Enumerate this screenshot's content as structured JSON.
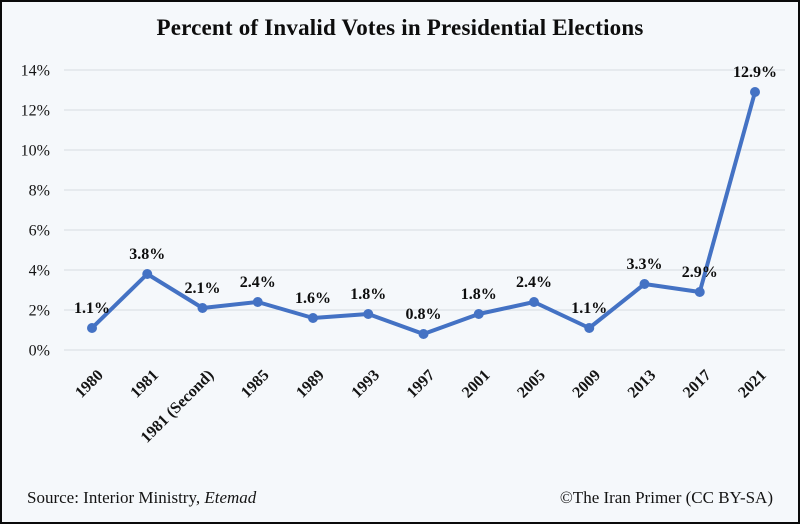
{
  "title": "Percent of Invalid Votes in Presidential Elections",
  "footer": {
    "source_prefix": "Source: Interior Ministry, ",
    "source_publication": "Etemad",
    "credit": "©The Iran Primer (CC BY-SA)"
  },
  "chart_data": {
    "type": "line",
    "title": "Percent of Invalid Votes in Presidential Elections",
    "categories": [
      "1980",
      "1981",
      "1981 (Second)",
      "1985",
      "1989",
      "1993",
      "1997",
      "2001",
      "2005",
      "2009",
      "2013",
      "2017",
      "2021"
    ],
    "values": [
      1.1,
      3.8,
      2.1,
      2.4,
      1.6,
      1.8,
      0.8,
      1.8,
      2.4,
      1.1,
      3.3,
      2.9,
      12.9
    ],
    "point_labels": [
      "1.1%",
      "3.8%",
      "2.1%",
      "2.4%",
      "1.6%",
      "1.8%",
      "0.8%",
      "1.8%",
      "2.4%",
      "1.1%",
      "3.3%",
      "2.9%",
      "12.9%"
    ],
    "xlabel": "",
    "ylabel": "",
    "ylim": [
      0,
      14
    ],
    "ytick_step": 2,
    "ytick_labels": [
      "0%",
      "2%",
      "4%",
      "6%",
      "8%",
      "10%",
      "12%",
      "14%"
    ],
    "grid": true,
    "legend": "none",
    "line_color": "#4472C4",
    "grid_color": "#d8dce1",
    "background_color": "#f5f8fb",
    "xtick_rotation_deg": -45
  }
}
